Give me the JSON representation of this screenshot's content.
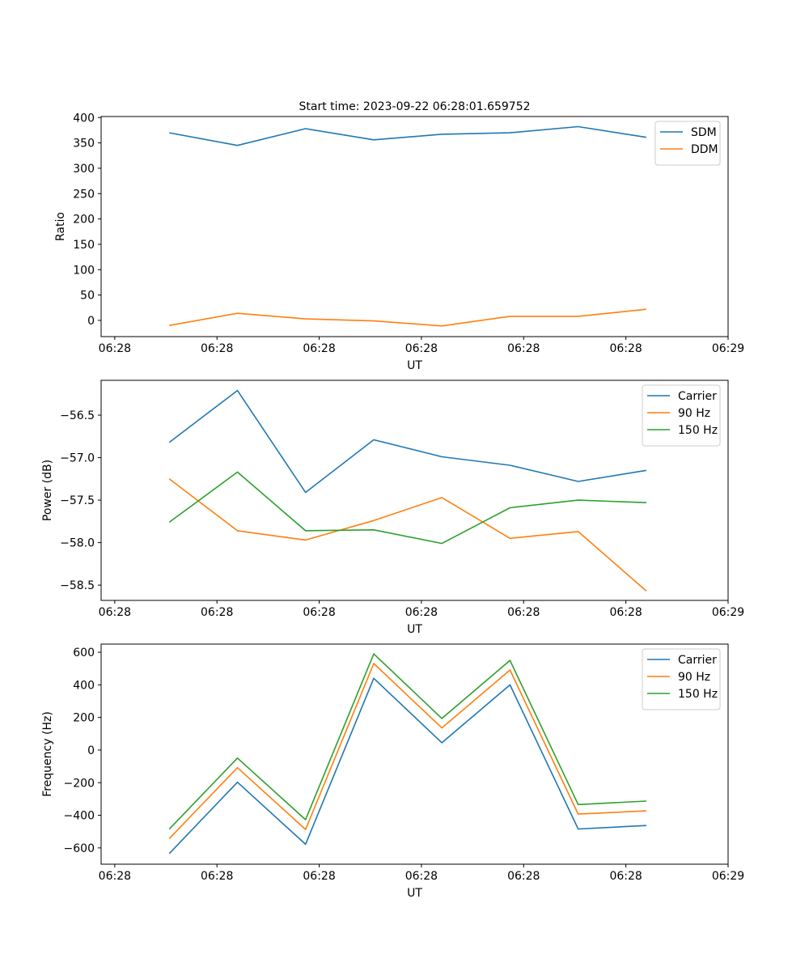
{
  "chart_data": [
    {
      "type": "line",
      "title": "Start time: 2023-09-22 06:28:01.659752",
      "xlabel": "UT",
      "ylabel": "Ratio",
      "x": [
        1,
        2,
        3,
        4,
        5,
        6,
        7,
        8
      ],
      "xlim": [
        0,
        9.2
      ],
      "xticks": [
        0.2,
        1.7,
        3.2,
        4.7,
        6.2,
        7.7,
        9.2
      ],
      "xtick_labels": [
        "06:28",
        "06:28",
        "06:28",
        "06:28",
        "06:28",
        "06:28",
        "06:29"
      ],
      "ylim": [
        -32,
        402
      ],
      "yticks": [
        0,
        50,
        100,
        150,
        200,
        250,
        300,
        350,
        400
      ],
      "legend_position": "top-right",
      "series": [
        {
          "name": "SDM",
          "color": "#1f77b4",
          "values": [
            370,
            345,
            378,
            356,
            367,
            370,
            382,
            361
          ]
        },
        {
          "name": "DDM",
          "color": "#ff7f0e",
          "values": [
            -10,
            14,
            3,
            -1,
            -11,
            8,
            8,
            22
          ]
        }
      ]
    },
    {
      "type": "line",
      "title": "",
      "xlabel": "UT",
      "ylabel": "Power (dB)",
      "x": [
        1,
        2,
        3,
        4,
        5,
        6,
        7,
        8
      ],
      "xlim": [
        0,
        9.2
      ],
      "xticks": [
        0.2,
        1.7,
        3.2,
        4.7,
        6.2,
        7.7,
        9.2
      ],
      "xtick_labels": [
        "06:28",
        "06:28",
        "06:28",
        "06:28",
        "06:28",
        "06:28",
        "06:29"
      ],
      "ylim": [
        -58.68,
        -56.09
      ],
      "yticks": [
        -58.5,
        -58.0,
        -57.5,
        -57.0,
        -56.5
      ],
      "ytick_labels": [
        "−58.5",
        "−58.0",
        "−57.5",
        "−57.0",
        "−56.5"
      ],
      "legend_position": "top-right",
      "series": [
        {
          "name": "Carrier",
          "color": "#1f77b4",
          "values": [
            -56.82,
            -56.21,
            -57.41,
            -56.79,
            -56.99,
            -57.09,
            -57.28,
            -57.15
          ]
        },
        {
          "name": "90 Hz",
          "color": "#ff7f0e",
          "values": [
            -57.25,
            -57.86,
            -57.97,
            -57.74,
            -57.47,
            -57.95,
            -57.87,
            -58.57
          ]
        },
        {
          "name": "150 Hz",
          "color": "#2ca02c",
          "values": [
            -57.76,
            -57.17,
            -57.86,
            -57.85,
            -58.01,
            -57.59,
            -57.5,
            -57.53
          ]
        }
      ]
    },
    {
      "type": "line",
      "title": "",
      "xlabel": "UT",
      "ylabel": "Frequency (Hz)",
      "x": [
        1,
        2,
        3,
        4,
        5,
        6,
        7,
        8
      ],
      "xlim": [
        0,
        9.2
      ],
      "xticks": [
        0.2,
        1.7,
        3.2,
        4.7,
        6.2,
        7.7,
        9.2
      ],
      "xtick_labels": [
        "06:28",
        "06:28",
        "06:28",
        "06:28",
        "06:28",
        "06:28",
        "06:29"
      ],
      "ylim": [
        -700,
        650
      ],
      "yticks": [
        -600,
        -400,
        -200,
        0,
        200,
        400,
        600
      ],
      "ytick_labels": [
        "−600",
        "−400",
        "−200",
        "0",
        "200",
        "400",
        "600"
      ],
      "legend_position": "top-right",
      "series": [
        {
          "name": "Carrier",
          "color": "#1f77b4",
          "values": [
            -635,
            -197,
            -578,
            440,
            45,
            400,
            -484,
            -463
          ]
        },
        {
          "name": "90 Hz",
          "color": "#ff7f0e",
          "values": [
            -543,
            -108,
            -487,
            531,
            136,
            491,
            -393,
            -373
          ]
        },
        {
          "name": "150 Hz",
          "color": "#2ca02c",
          "values": [
            -485,
            -49,
            -427,
            590,
            194,
            550,
            -334,
            -313
          ]
        }
      ]
    }
  ]
}
